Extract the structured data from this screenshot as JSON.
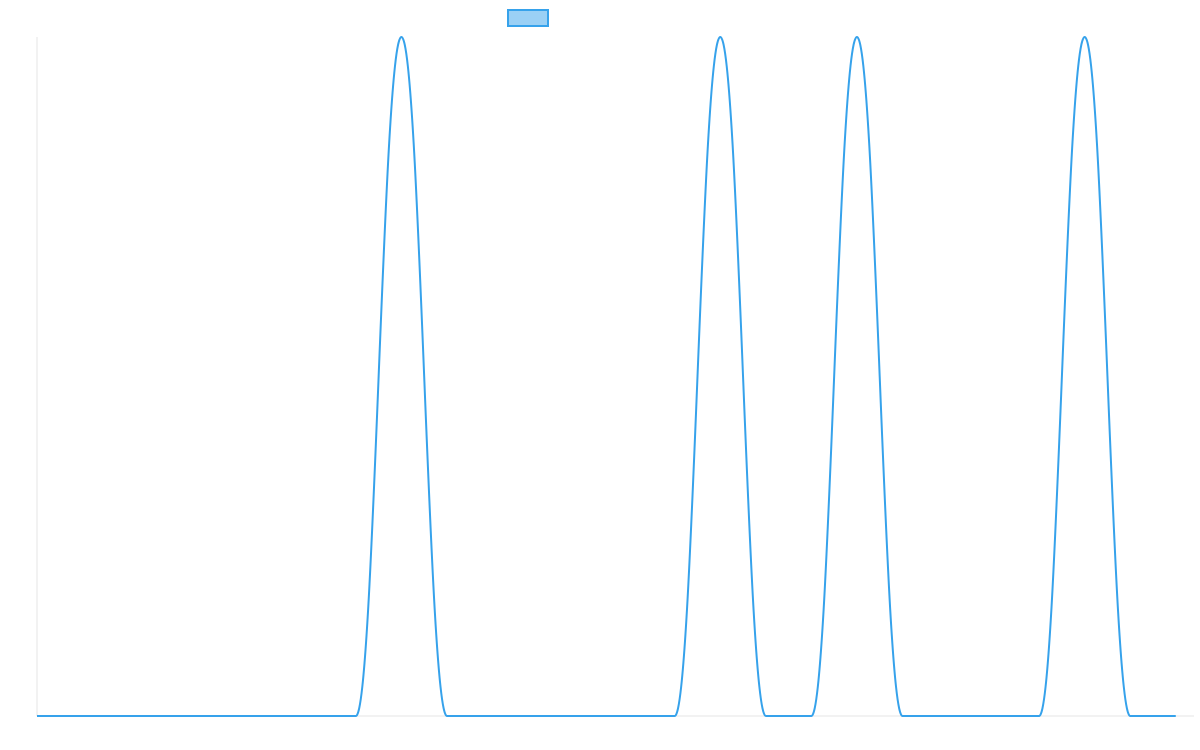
{
  "chart_data": {
    "type": "line",
    "title": "",
    "xlabel": "",
    "ylabel": "",
    "x": [
      0,
      1,
      2,
      3,
      4,
      5,
      6,
      7,
      8,
      9,
      10,
      11,
      12,
      13,
      14,
      15,
      16,
      17,
      18,
      19,
      20,
      21,
      22,
      23,
      24,
      25
    ],
    "xlim": [
      0,
      25.4
    ],
    "ylim": [
      0,
      1
    ],
    "series": [
      {
        "values": [
          0,
          0,
          0,
          0,
          0,
          0,
          0,
          0,
          1,
          0,
          0,
          0,
          0,
          0,
          0,
          1,
          0,
          0,
          1,
          0,
          0,
          0,
          0,
          1,
          0,
          0
        ],
        "color": "#36a2eb",
        "fill_color": "#9ad0f5"
      }
    ],
    "legend": {
      "position": "top",
      "label": ""
    },
    "grid": false,
    "axis_color": "#e5e5e5"
  }
}
